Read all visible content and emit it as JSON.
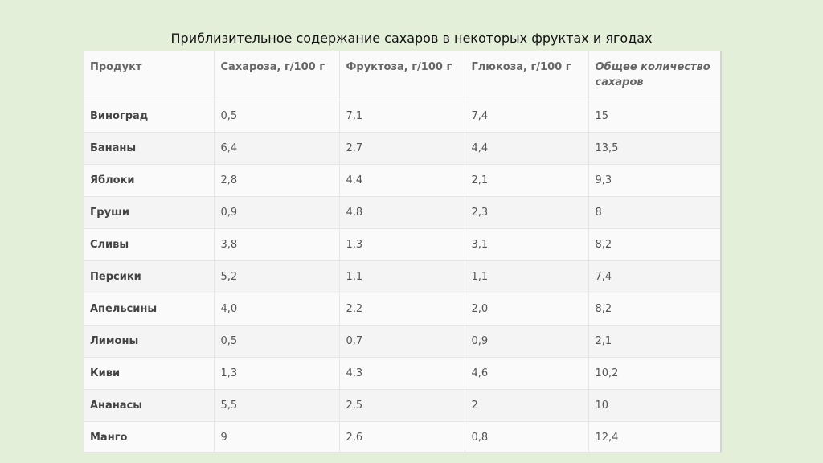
{
  "title": "Приблизительное содержание сахаров в некоторых фруктах и ягодах",
  "table": {
    "headers": [
      "Продукт",
      "Сахароза, г/100 г",
      "Фруктоза, г/100 г",
      "Глюкоза, г/100 г",
      "Общее количество сахаров"
    ],
    "rows": [
      [
        "Виноград",
        "0,5",
        "7,1",
        "7,4",
        "15"
      ],
      [
        "Бананы",
        "6,4",
        "2,7",
        "4,4",
        "13,5"
      ],
      [
        "Яблоки",
        "2,8",
        "4,4",
        "2,1",
        "9,3"
      ],
      [
        "Груши",
        "0,9",
        "4,8",
        "2,3",
        "8"
      ],
      [
        "Сливы",
        "3,8",
        "1,3",
        "3,1",
        "8,2"
      ],
      [
        "Персики",
        "5,2",
        "1,1",
        "1,1",
        "7,4"
      ],
      [
        "Апельсины",
        "4,0",
        "2,2",
        "2,0",
        "8,2"
      ],
      [
        "Лимоны",
        "0,5",
        "0,7",
        "0,9",
        "2,1"
      ],
      [
        "Киви",
        "1,3",
        "4,3",
        "4,6",
        "10,2"
      ],
      [
        "Ананасы",
        "5,5",
        "2,5",
        "2",
        "10"
      ],
      [
        "Манго",
        "9",
        "2,6",
        "0,8",
        "12,4"
      ]
    ]
  },
  "colors": {
    "background": "#e3efd8",
    "table_background": "#ffffff",
    "row_alt": "#f4f4f4"
  }
}
